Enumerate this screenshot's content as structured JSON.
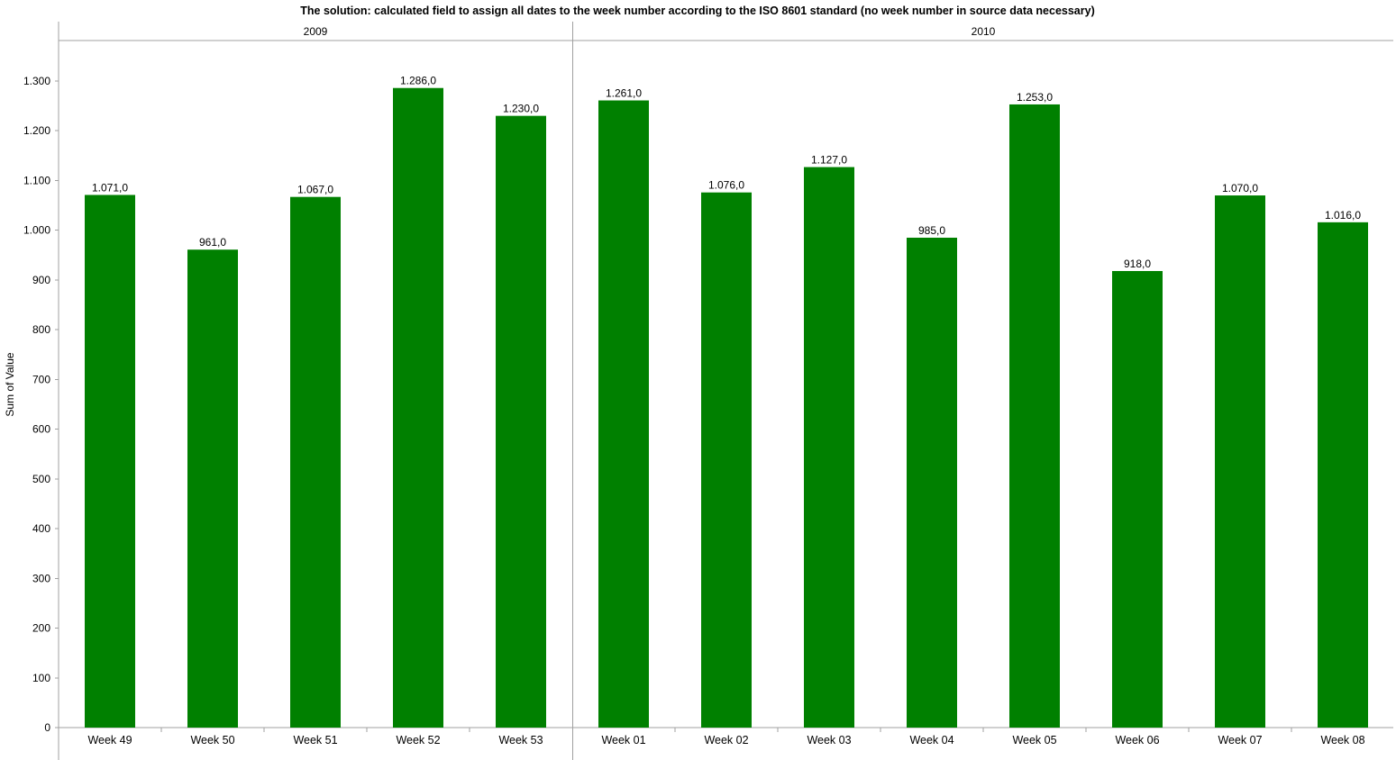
{
  "chart_data": {
    "type": "bar",
    "title": "The solution: calculated field to assign all dates to the week number according to the ISO 8601 standard (no week number in source data necessary)",
    "ylabel": "Sum of Value",
    "xlabel": "",
    "ylim": [
      0,
      1300
    ],
    "yticks": [
      0,
      100,
      200,
      300,
      400,
      500,
      600,
      700,
      800,
      900,
      1000,
      1100,
      1200,
      1300
    ],
    "ytick_labels": [
      "0",
      "100",
      "200",
      "300",
      "400",
      "500",
      "600",
      "700",
      "800",
      "900",
      "1.000",
      "1.100",
      "1.200",
      "1.300"
    ],
    "bar_color": "#008000",
    "grid": false,
    "groups": [
      {
        "label": "2009",
        "categories": [
          "Week 49",
          "Week 50",
          "Week 51",
          "Week 52",
          "Week 53"
        ],
        "values": [
          1071,
          961,
          1067,
          1286,
          1230
        ],
        "value_labels": [
          "1.071,0",
          "961,0",
          "1.067,0",
          "1.286,0",
          "1.230,0"
        ]
      },
      {
        "label": "2010",
        "categories": [
          "Week 01",
          "Week 02",
          "Week 03",
          "Week 04",
          "Week 05",
          "Week 06",
          "Week 07",
          "Week 08"
        ],
        "values": [
          1261,
          1076,
          1127,
          985,
          1253,
          918,
          1070,
          1016
        ],
        "value_labels": [
          "1.261,0",
          "1.076,0",
          "1.127,0",
          "985,0",
          "1.253,0",
          "918,0",
          "1.070,0",
          "1.016,0"
        ]
      }
    ]
  }
}
